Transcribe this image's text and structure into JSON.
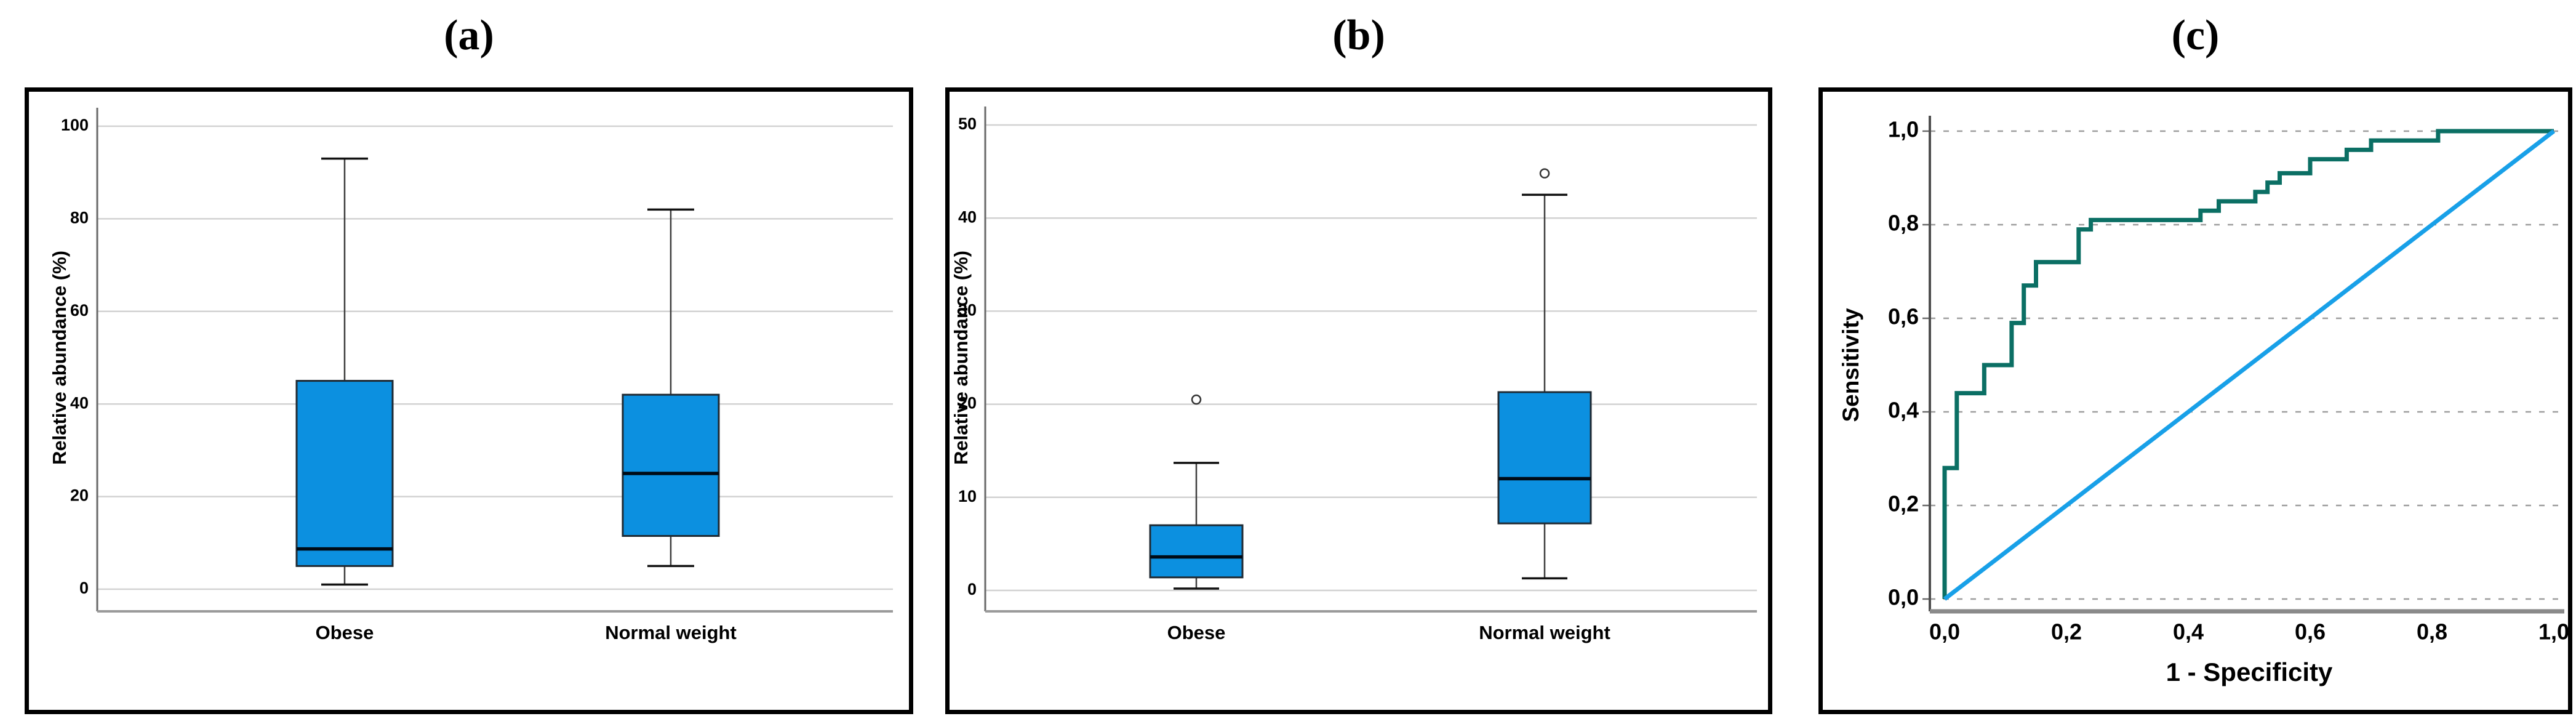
{
  "figure": {
    "panel_labels": {
      "a": "(a)",
      "b": "(b)",
      "c": "(c)"
    }
  },
  "colors": {
    "box_fill": "#0c90e0",
    "box_stroke": "#1f2a33",
    "median": "#000b16",
    "whisker": "#3d3d3d",
    "grid_solid": "#d2d2d2",
    "grid_dashed": "#9e9e9e",
    "axis": "#6a6a6a",
    "baseline": "#9a9a9a",
    "roc_curve": "#0b6f64",
    "roc_diagonal": "#18a0e8",
    "text": "#000000"
  },
  "chart_data": [
    {
      "type": "box",
      "panel": "a",
      "panel_label": "(a)",
      "ylabel": "Relative abundance (%)",
      "ylim": [
        0,
        100
      ],
      "yticks": [
        0,
        20,
        40,
        60,
        80,
        100
      ],
      "grid": "solid-horizontal",
      "categories": [
        "Obese",
        "Normal weight"
      ],
      "series": [
        {
          "category": "Obese",
          "whisker_low": 1,
          "q1": 5,
          "median": 8.7,
          "q3": 45,
          "whisker_high": 93,
          "outliers": []
        },
        {
          "category": "Normal weight",
          "whisker_low": 5,
          "q1": 11.5,
          "median": 25,
          "q3": 42,
          "whisker_high": 82,
          "outliers": []
        }
      ]
    },
    {
      "type": "box",
      "panel": "b",
      "panel_label": "(b)",
      "ylabel": "Relative abundance (%)",
      "ylim": [
        0,
        50
      ],
      "yticks": [
        0,
        10,
        20,
        30,
        40,
        50
      ],
      "grid": "solid-horizontal",
      "categories": [
        "Obese",
        "Normal weight"
      ],
      "series": [
        {
          "category": "Obese",
          "whisker_low": 0.2,
          "q1": 1.4,
          "median": 3.6,
          "q3": 7,
          "whisker_high": 13.7,
          "outliers": [
            20.5
          ]
        },
        {
          "category": "Normal weight",
          "whisker_low": 1.3,
          "q1": 7.2,
          "median": 12,
          "q3": 21.3,
          "whisker_high": 42.5,
          "outliers": [
            44.8
          ]
        }
      ]
    },
    {
      "type": "line",
      "panel": "c",
      "panel_label": "(c)",
      "xlabel": "1 - Specificity",
      "ylabel": "Sensitivity",
      "xlim": [
        0,
        1
      ],
      "ylim": [
        0,
        1
      ],
      "xtick_labels": [
        "0,0",
        "0,2",
        "0,4",
        "0,6",
        "0,8",
        "1,0"
      ],
      "ytick_labels": [
        "0,0",
        "0,2",
        "0,4",
        "0,6",
        "0,8",
        "1,0"
      ],
      "grid": "dashed-horizontal",
      "legend": "none",
      "series": [
        {
          "name": "ROC curve",
          "role": "roc-curve",
          "points": [
            [
              0,
              0
            ],
            [
              0,
              0.28
            ],
            [
              0.02,
              0.28
            ],
            [
              0.02,
              0.44
            ],
            [
              0.065,
              0.44
            ],
            [
              0.065,
              0.5
            ],
            [
              0.11,
              0.5
            ],
            [
              0.11,
              0.59
            ],
            [
              0.13,
              0.59
            ],
            [
              0.13,
              0.67
            ],
            [
              0.15,
              0.67
            ],
            [
              0.15,
              0.72
            ],
            [
              0.22,
              0.72
            ],
            [
              0.22,
              0.79
            ],
            [
              0.24,
              0.79
            ],
            [
              0.24,
              0.81
            ],
            [
              0.42,
              0.81
            ],
            [
              0.42,
              0.83
            ],
            [
              0.45,
              0.83
            ],
            [
              0.45,
              0.85
            ],
            [
              0.51,
              0.85
            ],
            [
              0.51,
              0.87
            ],
            [
              0.53,
              0.87
            ],
            [
              0.53,
              0.89
            ],
            [
              0.55,
              0.89
            ],
            [
              0.55,
              0.91
            ],
            [
              0.6,
              0.91
            ],
            [
              0.6,
              0.94
            ],
            [
              0.66,
              0.94
            ],
            [
              0.66,
              0.96
            ],
            [
              0.7,
              0.96
            ],
            [
              0.7,
              0.98
            ],
            [
              0.81,
              0.98
            ],
            [
              0.81,
              1
            ],
            [
              1,
              1
            ]
          ]
        },
        {
          "name": "Reference diagonal",
          "role": "reference-diagonal",
          "points": [
            [
              0,
              0
            ],
            [
              1,
              1
            ]
          ]
        }
      ]
    }
  ]
}
